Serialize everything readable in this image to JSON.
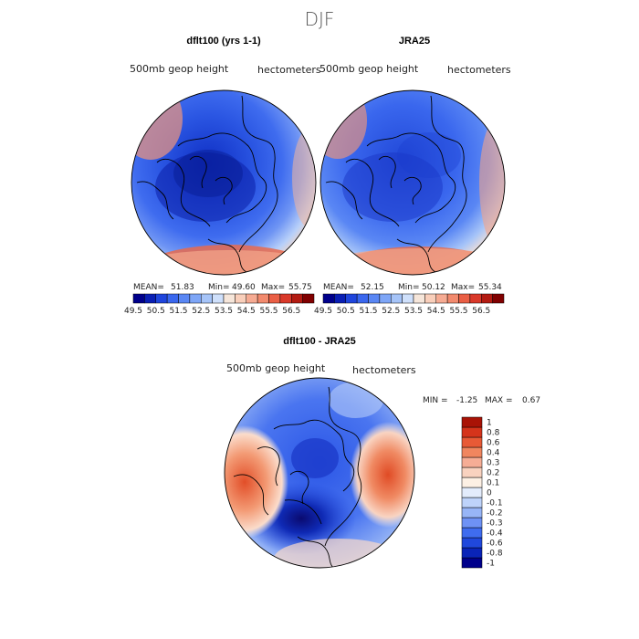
{
  "figure_title": "DJF",
  "colors": {
    "scale_full": [
      "#00008b",
      "#0a1fb4",
      "#1f45dc",
      "#3a67ee",
      "#5a87f4",
      "#7ea6f7",
      "#a6c4f8",
      "#cfe0fb",
      "#f6e6da",
      "#f9cfbb",
      "#f6ab93",
      "#f28a6e",
      "#ea5f45",
      "#d9392a",
      "#b31b12",
      "#800000"
    ],
    "diff_scale": [
      "#00008b",
      "#0a24b8",
      "#2048dc",
      "#3f6cef",
      "#6e92f5",
      "#97b5f7",
      "#bed3fa",
      "#e3ecfc",
      "#fdf0e4",
      "#f9d2bf",
      "#f6ad95",
      "#f0865f",
      "#e85a36",
      "#d5341b",
      "#a91306"
    ]
  },
  "chart_data": [
    {
      "type": "heatmap",
      "panel": "left",
      "title": "dflt100 (yrs 1-1)",
      "field_label": "500mb geop height",
      "units": "hectometers",
      "stats": {
        "mean_label": "MEAN=",
        "mean": "51.83",
        "min_label": "Min=",
        "min": "49.60",
        "max_label": "Max=",
        "max": "55.75"
      },
      "colorbar_ticks": [
        "49.5",
        "50.5",
        "51.5",
        "52.5",
        "53.5",
        "54.5",
        "55.5",
        "56.5"
      ],
      "colorbar_range": [
        49.5,
        57.0
      ],
      "projection": "north polar stereographic"
    },
    {
      "type": "heatmap",
      "panel": "right",
      "title": "JRA25",
      "field_label": "500mb geop height",
      "units": "hectometers",
      "stats": {
        "mean_label": "MEAN=",
        "mean": "52.15",
        "min_label": "Min=",
        "min": "50.12",
        "max_label": "Max=",
        "max": "55.34"
      },
      "colorbar_ticks": [
        "49.5",
        "50.5",
        "51.5",
        "52.5",
        "53.5",
        "54.5",
        "55.5",
        "56.5"
      ],
      "colorbar_range": [
        49.5,
        57.0
      ],
      "projection": "north polar stereographic"
    },
    {
      "type": "heatmap",
      "panel": "difference",
      "title": "dflt100 - JRA25",
      "field_label": "500mb geop height",
      "units": "hectometers",
      "stats": {
        "min_label": "MIN =",
        "min": "-1.25",
        "max_label": "MAX =",
        "max": "0.67"
      },
      "colorbar_levels": [
        "-1",
        "-0.8",
        "-0.6",
        "-0.4",
        "-0.3",
        "-0.2",
        "-0.1",
        "0",
        "0.1",
        "0.2",
        "0.3",
        "0.4",
        "0.6",
        "0.8",
        "1"
      ],
      "projection": "north polar stereographic"
    }
  ]
}
